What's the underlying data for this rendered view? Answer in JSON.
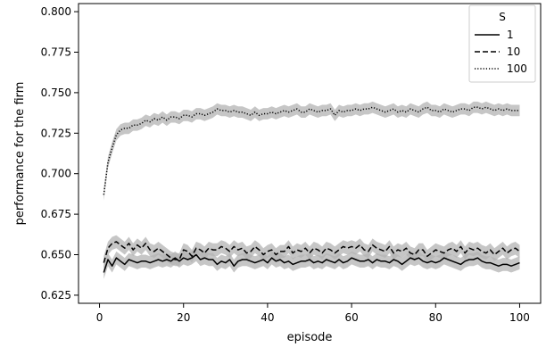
{
  "chart_data": {
    "type": "line",
    "xlabel": "episode",
    "ylabel": "performance for the firm",
    "xlim": [
      -5,
      105
    ],
    "ylim": [
      0.62,
      0.805
    ],
    "xticks": [
      0,
      20,
      40,
      60,
      80,
      100
    ],
    "yticks": [
      0.625,
      0.65,
      0.675,
      0.7,
      0.725,
      0.75,
      0.775,
      0.8
    ],
    "xtick_labels": [
      "0",
      "20",
      "40",
      "60",
      "80",
      "100"
    ],
    "ytick_labels": [
      "0.625",
      "0.650",
      "0.675",
      "0.700",
      "0.725",
      "0.750",
      "0.775",
      "0.800"
    ],
    "grid": false,
    "legend": {
      "title": "S",
      "placement": "top-right",
      "entries": [
        "1",
        "10",
        "100"
      ]
    },
    "band_color": "#b3b3b3",
    "line_color": "#000000",
    "series": [
      {
        "name": "1",
        "style": "solid",
        "x": [
          1,
          2,
          3,
          4,
          5,
          6,
          7,
          8,
          9,
          10,
          11,
          12,
          13,
          14,
          15,
          16,
          17,
          18,
          19,
          20,
          21,
          22,
          23,
          24,
          25,
          26,
          27,
          28,
          29,
          30,
          31,
          32,
          33,
          34,
          35,
          36,
          37,
          38,
          39,
          40,
          41,
          42,
          43,
          44,
          45,
          46,
          47,
          48,
          49,
          50,
          51,
          52,
          53,
          54,
          55,
          56,
          57,
          58,
          59,
          60,
          61,
          62,
          63,
          64,
          65,
          66,
          67,
          68,
          69,
          70,
          71,
          72,
          73,
          74,
          75,
          76,
          77,
          78,
          79,
          80,
          81,
          82,
          83,
          84,
          85,
          86,
          87,
          88,
          89,
          90,
          91,
          92,
          93,
          94,
          95,
          96,
          97,
          98,
          99,
          100
        ],
        "values": [
          0.639,
          0.647,
          0.643,
          0.648,
          0.646,
          0.644,
          0.647,
          0.646,
          0.645,
          0.646,
          0.646,
          0.645,
          0.646,
          0.647,
          0.646,
          0.647,
          0.646,
          0.648,
          0.646,
          0.648,
          0.647,
          0.648,
          0.65,
          0.647,
          0.648,
          0.647,
          0.647,
          0.644,
          0.646,
          0.645,
          0.647,
          0.643,
          0.646,
          0.647,
          0.647,
          0.646,
          0.645,
          0.646,
          0.647,
          0.645,
          0.648,
          0.646,
          0.647,
          0.645,
          0.646,
          0.644,
          0.645,
          0.646,
          0.646,
          0.647,
          0.645,
          0.646,
          0.645,
          0.647,
          0.646,
          0.645,
          0.647,
          0.645,
          0.646,
          0.648,
          0.647,
          0.646,
          0.646,
          0.647,
          0.645,
          0.647,
          0.646,
          0.646,
          0.645,
          0.647,
          0.646,
          0.644,
          0.646,
          0.648,
          0.647,
          0.648,
          0.646,
          0.645,
          0.646,
          0.645,
          0.646,
          0.648,
          0.647,
          0.646,
          0.645,
          0.644,
          0.646,
          0.647,
          0.647,
          0.648,
          0.646,
          0.645,
          0.645,
          0.644,
          0.643,
          0.644,
          0.644,
          0.643,
          0.644,
          0.645
        ],
        "band": 0.004
      },
      {
        "name": "10",
        "style": "dashed",
        "x": [
          1,
          2,
          3,
          4,
          5,
          6,
          7,
          8,
          9,
          10,
          11,
          12,
          13,
          14,
          15,
          16,
          17,
          18,
          19,
          20,
          21,
          22,
          23,
          24,
          25,
          26,
          27,
          28,
          29,
          30,
          31,
          32,
          33,
          34,
          35,
          36,
          37,
          38,
          39,
          40,
          41,
          42,
          43,
          44,
          45,
          46,
          47,
          48,
          49,
          50,
          51,
          52,
          53,
          54,
          55,
          56,
          57,
          58,
          59,
          60,
          61,
          62,
          63,
          64,
          65,
          66,
          67,
          68,
          69,
          70,
          71,
          72,
          73,
          74,
          75,
          76,
          77,
          78,
          79,
          80,
          81,
          82,
          83,
          84,
          85,
          86,
          87,
          88,
          89,
          90,
          91,
          92,
          93,
          94,
          95,
          96,
          97,
          98,
          99,
          100
        ],
        "values": [
          0.645,
          0.654,
          0.657,
          0.658,
          0.656,
          0.654,
          0.657,
          0.653,
          0.656,
          0.654,
          0.657,
          0.653,
          0.652,
          0.654,
          0.652,
          0.65,
          0.648,
          0.647,
          0.647,
          0.653,
          0.652,
          0.649,
          0.654,
          0.653,
          0.651,
          0.654,
          0.653,
          0.653,
          0.655,
          0.654,
          0.652,
          0.655,
          0.653,
          0.654,
          0.651,
          0.652,
          0.655,
          0.653,
          0.65,
          0.652,
          0.653,
          0.65,
          0.652,
          0.652,
          0.655,
          0.651,
          0.653,
          0.652,
          0.654,
          0.651,
          0.654,
          0.653,
          0.651,
          0.654,
          0.653,
          0.651,
          0.653,
          0.655,
          0.654,
          0.655,
          0.654,
          0.656,
          0.653,
          0.652,
          0.656,
          0.654,
          0.653,
          0.652,
          0.655,
          0.651,
          0.653,
          0.652,
          0.654,
          0.651,
          0.65,
          0.653,
          0.653,
          0.649,
          0.651,
          0.653,
          0.652,
          0.651,
          0.653,
          0.654,
          0.652,
          0.655,
          0.651,
          0.654,
          0.653,
          0.654,
          0.652,
          0.651,
          0.653,
          0.65,
          0.652,
          0.654,
          0.651,
          0.653,
          0.654,
          0.652
        ],
        "band": 0.004
      },
      {
        "name": "100",
        "style": "dotted",
        "x": [
          1,
          2,
          3,
          4,
          5,
          6,
          7,
          8,
          9,
          10,
          11,
          12,
          13,
          14,
          15,
          16,
          17,
          18,
          19,
          20,
          21,
          22,
          23,
          24,
          25,
          26,
          27,
          28,
          29,
          30,
          31,
          32,
          33,
          34,
          35,
          36,
          37,
          38,
          39,
          40,
          41,
          42,
          43,
          44,
          45,
          46,
          47,
          48,
          49,
          50,
          51,
          52,
          53,
          54,
          55,
          56,
          57,
          58,
          59,
          60,
          61,
          62,
          63,
          64,
          65,
          66,
          67,
          68,
          69,
          70,
          71,
          72,
          73,
          74,
          75,
          76,
          77,
          78,
          79,
          80,
          81,
          82,
          83,
          84,
          85,
          86,
          87,
          88,
          89,
          90,
          91,
          92,
          93,
          94,
          95,
          96,
          97,
          98,
          99,
          100
        ],
        "values": [
          0.687,
          0.707,
          0.716,
          0.724,
          0.727,
          0.728,
          0.728,
          0.73,
          0.73,
          0.731,
          0.733,
          0.732,
          0.734,
          0.733,
          0.735,
          0.733,
          0.735,
          0.735,
          0.734,
          0.736,
          0.736,
          0.735,
          0.737,
          0.737,
          0.736,
          0.737,
          0.738,
          0.74,
          0.739,
          0.739,
          0.738,
          0.739,
          0.738,
          0.738,
          0.737,
          0.736,
          0.738,
          0.736,
          0.737,
          0.737,
          0.738,
          0.737,
          0.738,
          0.739,
          0.738,
          0.739,
          0.74,
          0.738,
          0.738,
          0.74,
          0.739,
          0.738,
          0.739,
          0.739,
          0.74,
          0.736,
          0.739,
          0.738,
          0.739,
          0.739,
          0.74,
          0.739,
          0.74,
          0.74,
          0.741,
          0.74,
          0.739,
          0.738,
          0.739,
          0.74,
          0.738,
          0.739,
          0.738,
          0.74,
          0.739,
          0.738,
          0.74,
          0.741,
          0.739,
          0.739,
          0.738,
          0.74,
          0.739,
          0.738,
          0.739,
          0.74,
          0.74,
          0.739,
          0.741,
          0.741,
          0.74,
          0.741,
          0.74,
          0.739,
          0.74,
          0.739,
          0.74,
          0.739,
          0.739,
          0.739
        ],
        "band": 0.0035
      }
    ]
  }
}
